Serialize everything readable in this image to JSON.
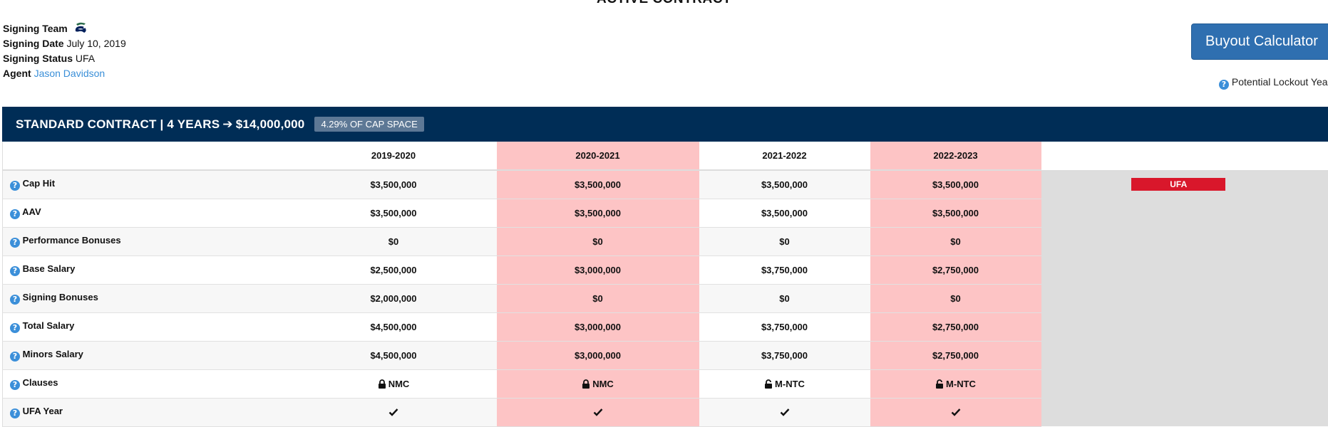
{
  "page": {
    "heading": "ACTIVE CONTRACT"
  },
  "info": {
    "signing_team_label": "Signing Team",
    "signing_date_label": "Signing Date",
    "signing_date": "July 10, 2019",
    "signing_status_label": "Signing Status",
    "signing_status": "UFA",
    "agent_label": "Agent",
    "agent_name": "Jason Davidson",
    "team_logo_icon": "team-logo-icon"
  },
  "actions": {
    "buyout_label": "Buyout Calculator",
    "lockout_label": "Potential Lockout Year"
  },
  "contract": {
    "banner_title": "STANDARD CONTRACT | 4 YEARS",
    "banner_value": "$14,000,000",
    "cap_badge": "4.29% OF CAP SPACE",
    "seasons": [
      "2019-2020",
      "2020-2021",
      "2021-2022",
      "2022-2023"
    ],
    "after_status": "UFA",
    "rows": [
      {
        "label": "Cap Hit",
        "values": [
          "$3,500,000",
          "$3,500,000",
          "$3,500,000",
          "$3,500,000"
        ]
      },
      {
        "label": "AAV",
        "values": [
          "$3,500,000",
          "$3,500,000",
          "$3,500,000",
          "$3,500,000"
        ]
      },
      {
        "label": "Performance Bonuses",
        "values": [
          "$0",
          "$0",
          "$0",
          "$0"
        ]
      },
      {
        "label": "Base Salary",
        "values": [
          "$2,500,000",
          "$3,000,000",
          "$3,750,000",
          "$2,750,000"
        ]
      },
      {
        "label": "Signing Bonuses",
        "values": [
          "$2,000,000",
          "$0",
          "$0",
          "$0"
        ]
      },
      {
        "label": "Total Salary",
        "values": [
          "$4,500,000",
          "$3,000,000",
          "$3,750,000",
          "$2,750,000"
        ]
      },
      {
        "label": "Minors Salary",
        "values": [
          "$4,500,000",
          "$3,000,000",
          "$3,750,000",
          "$2,750,000"
        ]
      },
      {
        "label": "Clauses",
        "values": [
          "NMC",
          "NMC",
          "M-NTC",
          "M-NTC"
        ],
        "icons": [
          "lock-closed-icon",
          "lock-closed-icon",
          "lock-open-icon",
          "lock-open-icon"
        ]
      },
      {
        "label": "UFA Year",
        "values": [
          "",
          "",
          "",
          ""
        ],
        "icons": [
          "check-icon",
          "check-icon",
          "check-icon",
          "check-icon"
        ]
      }
    ]
  },
  "colors": {
    "banner_bg": "#002d56",
    "lockout_highlight": "#fdc4c5",
    "ufa_badge": "#d9172b",
    "button_bg": "#2f6fb0",
    "link": "#3a8fd8"
  }
}
